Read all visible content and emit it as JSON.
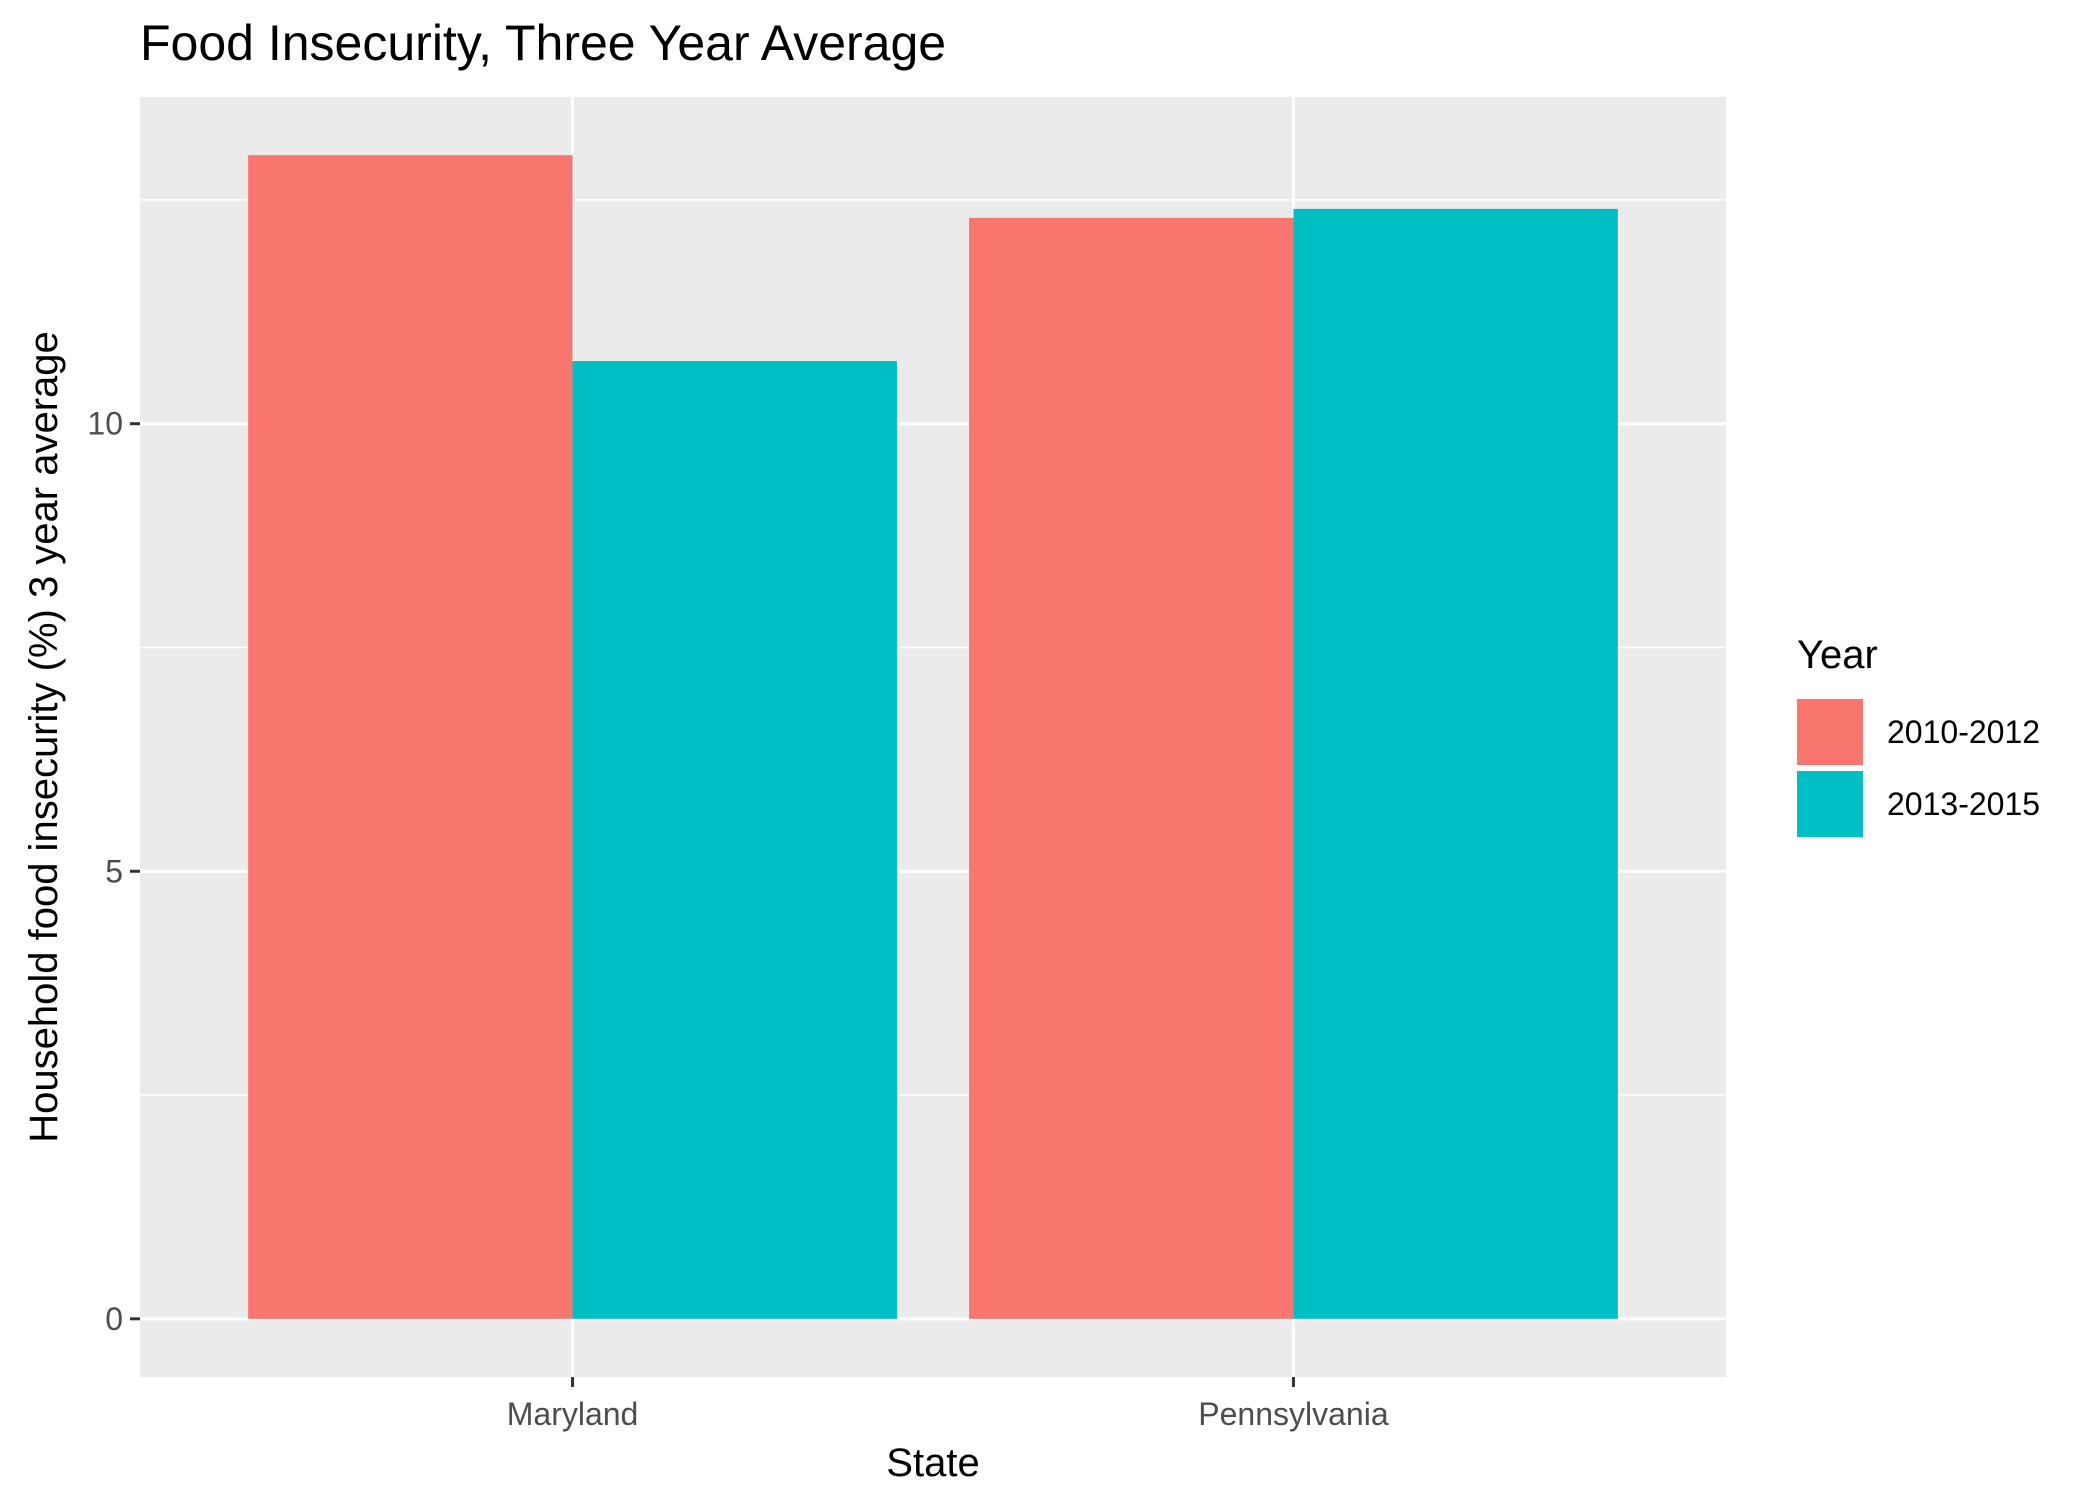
{
  "chart_data": {
    "type": "bar",
    "title": "Food Insecurity, Three Year Average",
    "xlabel": "State",
    "ylabel": "Household food insecurity (%) 3 year average",
    "categories": [
      "Maryland",
      "Pennsylvania"
    ],
    "series": [
      {
        "name": "2010-2012",
        "color": "#F8766D",
        "values": [
          13.0,
          12.3
        ]
      },
      {
        "name": "2013-2015",
        "color": "#00BFC4",
        "values": [
          10.7,
          12.4
        ]
      }
    ],
    "ylim": [
      -0.65,
      13.65
    ],
    "yticks": [
      0,
      5,
      10
    ],
    "ytick_labels": [
      "0",
      "5",
      "10"
    ],
    "grid": true,
    "panel_background": "#EBEBEB",
    "legend": {
      "title": "Year",
      "position": "right"
    }
  }
}
